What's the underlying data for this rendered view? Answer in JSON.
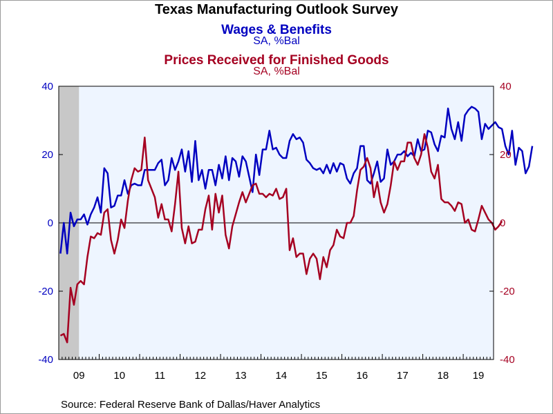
{
  "header": {
    "title": "Texas Manufacturing Outlook Survey",
    "series1_title": "Wages & Benefits",
    "series1_units": "SA, %Bal",
    "series2_title": "Prices Received for Finished Goods",
    "series2_units": "SA, %Bal"
  },
  "footer": {
    "source": "Source:  Federal Reserve Bank of Dallas/Haver Analytics"
  },
  "colors": {
    "series1": "#0000c0",
    "series2": "#a50021",
    "plot_bg": "#eef5ff",
    "recession": "#c8c8c8"
  },
  "chart_data": {
    "type": "line",
    "title": "Texas Manufacturing Outlook Survey",
    "x_start": "2009-01",
    "frequency": "monthly",
    "xlim": [
      "2009-01",
      "2019-09"
    ],
    "x_tick_labels": [
      "09",
      "10",
      "11",
      "12",
      "13",
      "14",
      "15",
      "16",
      "17",
      "18",
      "19"
    ],
    "ylim_left": [
      -40,
      40
    ],
    "ylim_right": [
      -40,
      40
    ],
    "y_ticks_left": [
      40,
      20,
      0,
      -20,
      -40
    ],
    "y_ticks_right": [
      40,
      20,
      0,
      -20,
      -40
    ],
    "recession_shading": [
      "2009-01",
      "2009-06"
    ],
    "zero_line": true,
    "series": [
      {
        "name": "Wages & Benefits",
        "axis": "left",
        "values": [
          -9,
          0,
          -9,
          3,
          -1,
          1,
          1,
          2.5,
          -0.5,
          2.5,
          4.5,
          7.5,
          3,
          16,
          14.5,
          4.5,
          5,
          8,
          8,
          12.5,
          8.5,
          11,
          11.5,
          11,
          11,
          15.5,
          15.5,
          15.5,
          15.5,
          17.5,
          18.5,
          11,
          12.5,
          19,
          15.5,
          18,
          21.5,
          15,
          21,
          12,
          24,
          12.5,
          15.5,
          10,
          15.5,
          15.5,
          11,
          17,
          13,
          19.5,
          12.5,
          19,
          18,
          13.5,
          19.5,
          18,
          13.5,
          9,
          20,
          14,
          21.5,
          21.5,
          27,
          21.5,
          22,
          20,
          19,
          19,
          24,
          26,
          24.5,
          25,
          23.5,
          18.5,
          17.5,
          16,
          15.5,
          16,
          14.5,
          17,
          14.5,
          17.5,
          15,
          17.5,
          17,
          13,
          11.5,
          14.5,
          16,
          22.5,
          22.5,
          12.5,
          11.5,
          14.5,
          18,
          12,
          13,
          21.5,
          17,
          18,
          20,
          20,
          21,
          19.5,
          20.5,
          19.5,
          24.5,
          21,
          21.5,
          27,
          26.5,
          23,
          21,
          25.5,
          25,
          33.5,
          27.5,
          24.5,
          29.5,
          24,
          31.5,
          33,
          34,
          33.5,
          32.5,
          24.5,
          29,
          27.5,
          28.5,
          29.5,
          28,
          27.5,
          22.5,
          20,
          27,
          17,
          22,
          21,
          14.5,
          16.5,
          22.5
        ]
      },
      {
        "name": "Prices Received for Finished Goods",
        "axis": "right",
        "values": [
          -33,
          -32.5,
          -35,
          -19,
          -24,
          -18,
          -17,
          -18,
          -10,
          -4,
          -4.5,
          -3,
          -3.5,
          3,
          4,
          -5,
          -9,
          -5,
          1,
          -1.5,
          6.5,
          12.5,
          16,
          15,
          15.5,
          25,
          12.5,
          10,
          7.5,
          1.5,
          5.5,
          1,
          1,
          -2.5,
          5.5,
          15,
          -1.5,
          -6,
          -1,
          -6,
          -5.5,
          -2,
          -2,
          4,
          8,
          -2,
          8.5,
          3,
          8,
          -3.5,
          -7.5,
          -1,
          2.5,
          6,
          9,
          6,
          8.5,
          11,
          11.5,
          8.5,
          8.5,
          7.5,
          8.5,
          8,
          10,
          7,
          7.5,
          10,
          -8,
          -4.5,
          -10,
          -9,
          -9,
          -15,
          -10.5,
          -9,
          -10.5,
          -16.5,
          -10,
          -13,
          -8,
          -6.5,
          -2,
          -4,
          -4.5,
          0,
          0,
          2,
          9.5,
          15.5,
          16.5,
          19,
          16,
          7.5,
          12,
          6,
          3,
          5.5,
          11,
          18,
          15.5,
          18,
          18,
          23.5,
          23.5,
          19,
          17,
          20,
          26,
          22,
          15,
          13,
          17,
          7,
          6,
          6,
          5,
          3.5,
          6,
          5.5,
          0,
          1,
          -2,
          -2.5,
          1,
          5,
          3,
          1,
          0,
          -2,
          -1,
          0.5
        ]
      }
    ]
  }
}
